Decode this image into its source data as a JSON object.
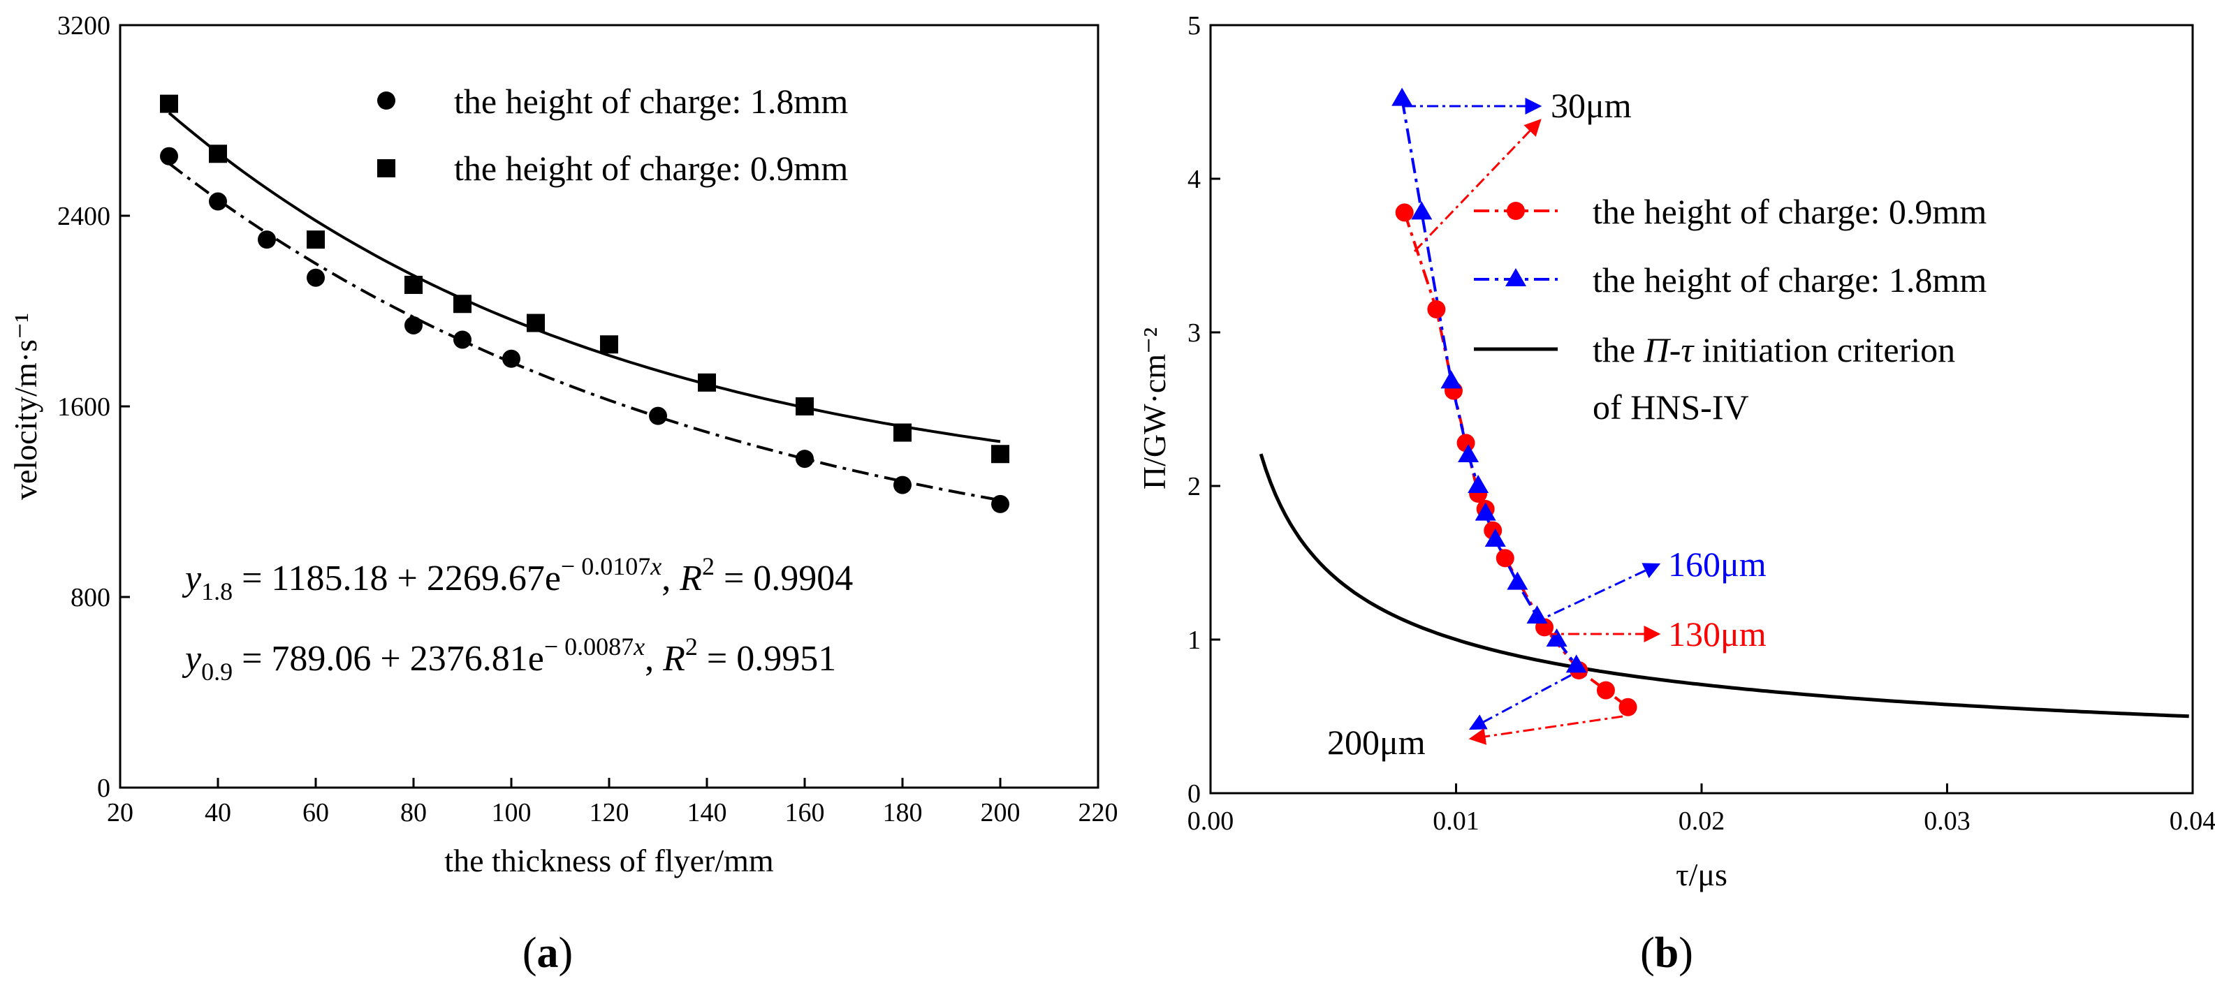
{
  "chart_data": [
    {
      "type": "scatter",
      "panel_label": "a",
      "xlabel": "the thickness of flyer/mm",
      "ylabel": "velocity/m·s⁻¹",
      "xlim": [
        20,
        220
      ],
      "ylim": [
        0,
        3200
      ],
      "xticks": [
        20,
        40,
        60,
        80,
        100,
        120,
        140,
        160,
        180,
        200,
        220
      ],
      "yticks": [
        0,
        800,
        1600,
        2400,
        3200
      ],
      "series": [
        {
          "name": "the height of charge: 1.8mm",
          "marker": "circle",
          "x": [
            30,
            40,
            50,
            60,
            80,
            90,
            100,
            130,
            160,
            180,
            200
          ],
          "y": [
            2650,
            2460,
            2300,
            2140,
            1940,
            1880,
            1800,
            1560,
            1380,
            1270,
            1190
          ],
          "fit": {
            "a": 1185.18,
            "b": 2269.67,
            "k": 0.0107,
            "style": "solid"
          }
        },
        {
          "name": "the height of charge: 0.9mm",
          "marker": "square",
          "x": [
            30,
            40,
            60,
            80,
            90,
            105,
            120,
            140,
            160,
            180,
            200
          ],
          "y": [
            2870,
            2660,
            2300,
            2110,
            2030,
            1950,
            1860,
            1700,
            1600,
            1490,
            1400
          ],
          "fit": {
            "a": 789.06,
            "b": 2376.81,
            "k": 0.0087,
            "style": "dashdot"
          }
        }
      ],
      "equations": [
        {
          "y": "y",
          "sub": "1.8",
          "rhs": " = 1185.18 + 2269.67e",
          "exp": "− 0.0107",
          "expvar": "x",
          "sep": ",  ",
          "r": "R",
          "r2": "2",
          "rval": " = 0.9904"
        },
        {
          "y": "y",
          "sub": "0.9",
          "rhs": " = 789.06 + 2376.81e",
          "exp": "− 0.0087",
          "expvar": "x",
          "sep": ",  ",
          "r": "R",
          "r2": "2",
          "rval": " = 0.9951"
        }
      ]
    },
    {
      "type": "line",
      "panel_label": "b",
      "xlabel": "τ/μs",
      "ylabel": "Π/GW·cm⁻²",
      "xlim": [
        0,
        0.04
      ],
      "ylim": [
        0,
        5
      ],
      "xticks": [
        "0.00",
        "0.01",
        "0.02",
        "0.03",
        "0.04"
      ],
      "yticks": [
        0,
        1,
        2,
        3,
        4,
        5
      ],
      "series": [
        {
          "name": "the height of charge: 0.9mm",
          "color": "#ff0000",
          "marker": "circle",
          "x": [
            0.0079,
            0.0092,
            0.0099,
            0.0104,
            0.0109,
            0.0112,
            0.0115,
            0.012,
            0.0136,
            0.015,
            0.0161,
            0.017
          ],
          "y": [
            3.78,
            3.15,
            2.62,
            2.28,
            1.95,
            1.85,
            1.71,
            1.53,
            1.08,
            0.8,
            0.67,
            0.56
          ]
        },
        {
          "name": "the height of charge: 1.8mm",
          "color": "#0000ff",
          "marker": "triangle",
          "x": [
            0.0078,
            0.0086,
            0.0098,
            0.0105,
            0.0109,
            0.0112,
            0.0116,
            0.0125,
            0.0133,
            0.0141,
            0.0149
          ],
          "y": [
            4.52,
            3.78,
            2.68,
            2.2,
            2.0,
            1.82,
            1.65,
            1.37,
            1.15,
            1.0,
            0.83
          ]
        },
        {
          "name_pre": "the ",
          "name_pi": "Π",
          "name_dash": "-",
          "name_tau": "τ",
          "name_post": " initiation criterion",
          "name_line2": "of HNS-IV",
          "color": "#000000",
          "curve": "Π²τ = 0.01",
          "style": "solid"
        }
      ],
      "annotations": [
        {
          "text": "30μm",
          "color": "#000000"
        },
        {
          "text": "160μm",
          "color": "#0000ff"
        },
        {
          "text": "130μm",
          "color": "#ff0000"
        },
        {
          "text": "200μm",
          "color": "#000000"
        }
      ]
    }
  ]
}
